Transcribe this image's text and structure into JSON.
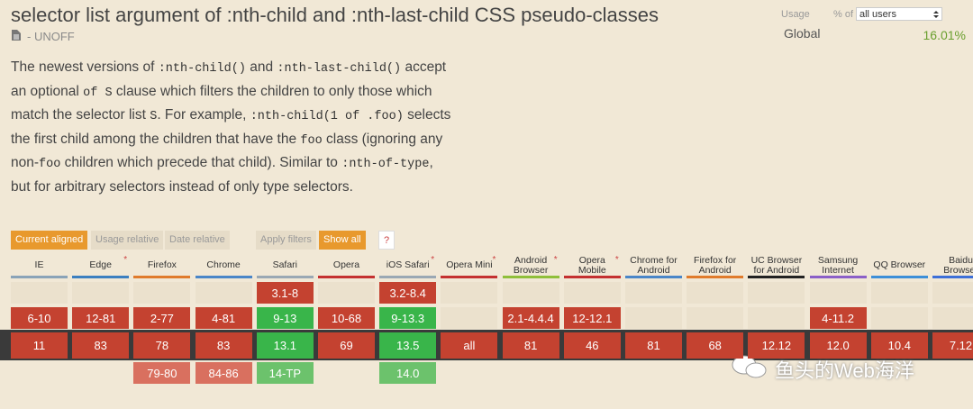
{
  "header": {
    "title": "selector list argument of :nth-child and :nth-last-child CSS pseudo-classes",
    "status": "- UNOFF"
  },
  "description": [
    {
      "text": "The newest versions of ",
      "code": false
    },
    {
      "text": ":nth-child()",
      "code": true
    },
    {
      "text": " and ",
      "code": false
    },
    {
      "text": ":nth-last-child()",
      "code": true
    },
    {
      "text": " accept an optional ",
      "code": false
    },
    {
      "text": "of S",
      "code": true
    },
    {
      "text": " clause which filters the children to only those which match the selector list ",
      "code": false
    },
    {
      "text": "S",
      "code": true
    },
    {
      "text": ". For example, ",
      "code": false
    },
    {
      "text": ":nth-child(1 of .foo)",
      "code": true
    },
    {
      "text": " selects the first child among the children that have the ",
      "code": false
    },
    {
      "text": "foo",
      "code": true
    },
    {
      "text": " class (ignoring any non-",
      "code": false
    },
    {
      "text": "foo",
      "code": true
    },
    {
      "text": " children which precede that child). Similar to ",
      "code": false
    },
    {
      "text": ":nth-of-type",
      "code": true
    },
    {
      "text": ", but for arbitrary selectors instead of only type selectors.",
      "code": false
    }
  ],
  "usage": {
    "label": "Usage",
    "of_label": "% of",
    "scope": "all users",
    "region": "Global",
    "percent": "16.01%"
  },
  "filters": {
    "buttons": [
      {
        "label": "Current aligned",
        "active": true
      },
      {
        "label": "Usage relative",
        "active": false
      },
      {
        "label": "Date relative",
        "active": false
      },
      {
        "label": "Apply filters",
        "active": false
      },
      {
        "label": "Show all",
        "active": true
      }
    ],
    "help": "?"
  },
  "browsers": [
    {
      "name": "IE",
      "color": "#8aa3b8"
    },
    {
      "name": "Edge",
      "color": "#3c7fc0",
      "asterisk": "*"
    },
    {
      "name": "Firefox",
      "color": "#e07b2c"
    },
    {
      "name": "Chrome",
      "color": "#4a86c8"
    },
    {
      "name": "Safari",
      "color": "#9aa8b4"
    },
    {
      "name": "Opera",
      "color": "#c43030"
    },
    {
      "name": "iOS Safari",
      "color": "#9aa8b4",
      "asterisk": "*"
    },
    {
      "name": "Opera Mini",
      "color": "#c43030",
      "asterisk": "*"
    },
    {
      "name": "Android Browser",
      "color": "#8fbf3a",
      "asterisk": "*"
    },
    {
      "name": "Opera Mobile",
      "color": "#c43030",
      "asterisk": "*"
    },
    {
      "name": "Chrome for Android",
      "color": "#4a86c8"
    },
    {
      "name": "Firefox for Android",
      "color": "#e07b2c"
    },
    {
      "name": "UC Browser for Android",
      "color": "#222222"
    },
    {
      "name": "Samsung Internet",
      "color": "#8b5fc8"
    },
    {
      "name": "QQ Browser",
      "color": "#3d8fd8"
    },
    {
      "name": "Baidu Browser",
      "color": "#3d6fd8"
    }
  ],
  "support": {
    "rows": [
      {
        "period": "past",
        "cells": [
          null,
          null,
          null,
          null,
          {
            "text": "3.1-8",
            "status": "n"
          },
          null,
          {
            "text": "3.2-8.4",
            "status": "n"
          },
          null,
          null,
          null,
          null,
          null,
          null,
          null,
          null,
          null
        ]
      },
      {
        "period": "past",
        "cells": [
          {
            "text": "6-10",
            "status": "n"
          },
          {
            "text": "12-81",
            "status": "n"
          },
          {
            "text": "2-77",
            "status": "n"
          },
          {
            "text": "4-81",
            "status": "n"
          },
          {
            "text": "9-13",
            "status": "y"
          },
          {
            "text": "10-68",
            "status": "n"
          },
          {
            "text": "9-13.3",
            "status": "y"
          },
          null,
          {
            "text": "2.1-4.4.4",
            "status": "n"
          },
          {
            "text": "12-12.1",
            "status": "n"
          },
          null,
          null,
          null,
          {
            "text": "4-11.2",
            "status": "n"
          },
          null,
          null
        ]
      },
      {
        "period": "current",
        "cells": [
          {
            "text": "11",
            "status": "n"
          },
          {
            "text": "83",
            "status": "n"
          },
          {
            "text": "78",
            "status": "n"
          },
          {
            "text": "83",
            "status": "n"
          },
          {
            "text": "13.1",
            "status": "y"
          },
          {
            "text": "69",
            "status": "n"
          },
          {
            "text": "13.5",
            "status": "y"
          },
          {
            "text": "all",
            "status": "n"
          },
          {
            "text": "81",
            "status": "n"
          },
          {
            "text": "46",
            "status": "n"
          },
          {
            "text": "81",
            "status": "n"
          },
          {
            "text": "68",
            "status": "n"
          },
          {
            "text": "12.12",
            "status": "n"
          },
          {
            "text": "12.0",
            "status": "n"
          },
          {
            "text": "10.4",
            "status": "n"
          },
          {
            "text": "7.12",
            "status": "n"
          }
        ]
      },
      {
        "period": "future",
        "cells": [
          null,
          null,
          {
            "text": "79-80",
            "status": "n"
          },
          {
            "text": "84-86",
            "status": "n"
          },
          {
            "text": "14-TP",
            "status": "y"
          },
          null,
          {
            "text": "14.0",
            "status": "y"
          },
          null,
          null,
          null,
          null,
          null,
          null,
          null,
          null,
          null
        ]
      }
    ]
  },
  "watermark": "鱼头的Web海洋"
}
